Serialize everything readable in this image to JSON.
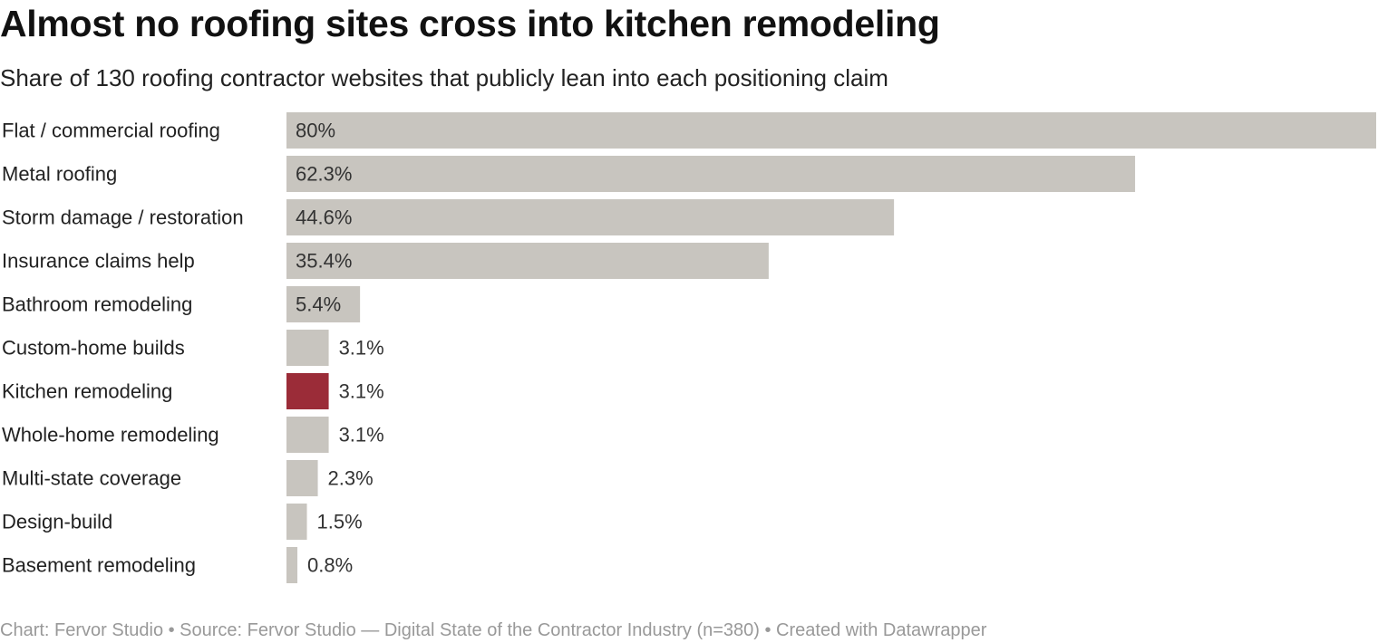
{
  "chart_data": {
    "type": "bar",
    "orientation": "horizontal",
    "title": "Almost no roofing sites cross into kitchen remodeling",
    "subtitle": "Share of 130 roofing contractor websites that publicly lean into each positioning claim",
    "categories": [
      "Flat / commercial roofing",
      "Metal roofing",
      "Storm damage / restoration",
      "Insurance claims help",
      "Bathroom remodeling",
      "Custom-home builds",
      "Kitchen remodeling",
      "Whole-home remodeling",
      "Multi-state coverage",
      "Design-build",
      "Basement remodeling"
    ],
    "values": [
      80,
      62.3,
      44.6,
      35.4,
      5.4,
      3.1,
      3.1,
      3.1,
      2.3,
      1.5,
      0.8
    ],
    "value_labels": [
      "80%",
      "62.3%",
      "44.6%",
      "35.4%",
      "5.4%",
      "3.1%",
      "3.1%",
      "3.1%",
      "2.3%",
      "1.5%",
      "0.8%"
    ],
    "highlight_category": "Kitchen remodeling",
    "xlim": [
      0,
      80
    ],
    "grid": false,
    "legend": "none",
    "colors": {
      "bar": "#c8c5bf",
      "highlight": "#9b2c38"
    },
    "footer": "Chart: Fervor Studio • Source: Fervor Studio — Digital State of the Contractor Industry (n=380) • Created with Datawrapper"
  }
}
